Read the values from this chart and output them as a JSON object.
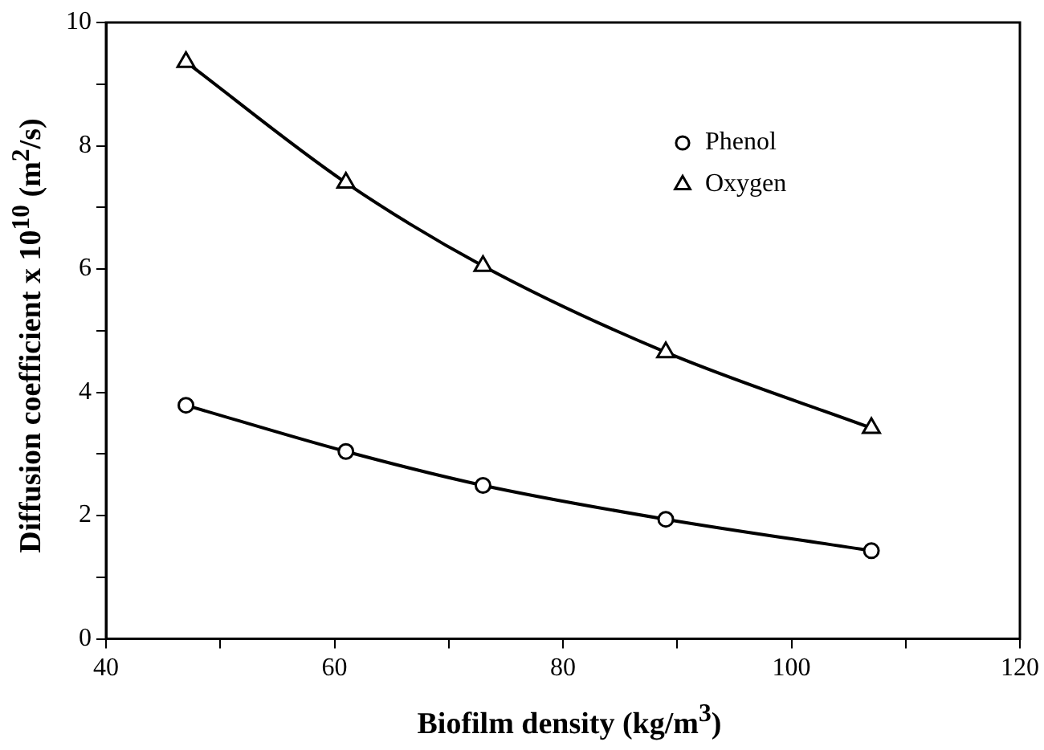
{
  "chart_data": {
    "type": "line",
    "xlabel": "Biofilm density  (kg/m$^{3}$)",
    "ylabel": "Diffusion coefficient x 10$^{10}$ (m$^{2}$/s)",
    "x": [
      47,
      61,
      73,
      89,
      107
    ],
    "series": [
      {
        "name": "Phenol",
        "color": "#000000",
        "marker": "circle",
        "values": [
          3.79,
          3.04,
          2.49,
          1.94,
          1.43
        ]
      },
      {
        "name": "Oxygen",
        "color": "#000000",
        "marker": "triangle",
        "values": [
          9.36,
          7.4,
          6.05,
          4.65,
          3.42
        ]
      }
    ],
    "xlim": [
      40,
      120
    ],
    "xticks": [
      40,
      {
        "value": 50,
        "label": null
      },
      60,
      {
        "value": 70,
        "label": null
      },
      80,
      {
        "value": 90,
        "label": null
      },
      100,
      {
        "value": 110,
        "label": null
      },
      120
    ],
    "ylim": [
      0,
      10
    ],
    "yticks": [
      0,
      {
        "value": 1,
        "label": null
      },
      2,
      {
        "value": 3,
        "label": null
      },
      4,
      {
        "value": 5,
        "label": null
      },
      6,
      {
        "value": 7,
        "label": null
      },
      8,
      {
        "value": 9,
        "label": null
      },
      10
    ],
    "grid": false,
    "legend": "top right",
    "line_style": "solid"
  }
}
